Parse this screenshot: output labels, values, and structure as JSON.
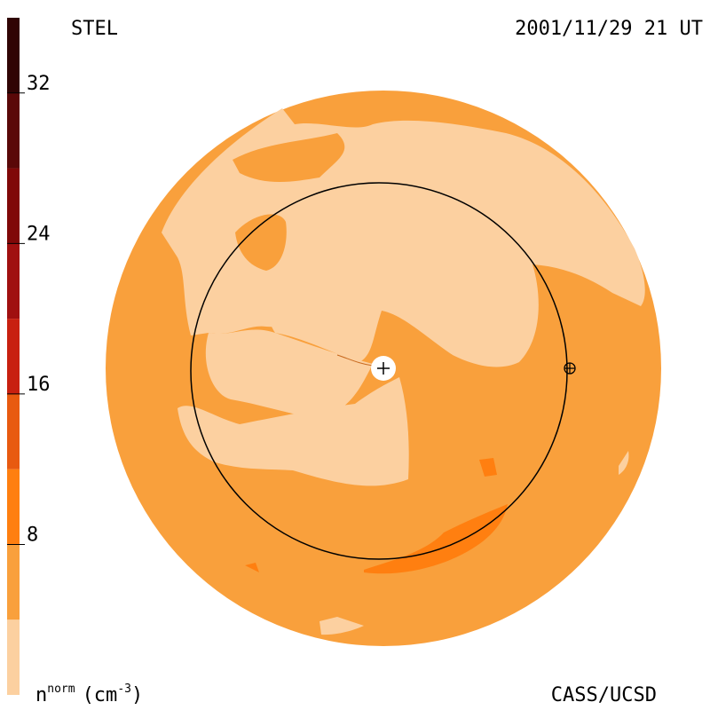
{
  "chart_data": {
    "type": "colorbar",
    "title": "STEL",
    "date": "2001/11/29 21 UT",
    "credit": "CASS/UCSD",
    "label": {
      "base": "n",
      "sup": "norm",
      "unit": "(cm",
      "unit_sup": "-3",
      "close": ")"
    },
    "levels": [
      0,
      4,
      8,
      12,
      16,
      20,
      24,
      28,
      32,
      36
    ],
    "colors": [
      "#fcd0a0",
      "#f9a03c",
      "#ff7f10",
      "#e85a10",
      "#c82010",
      "#a01010",
      "#800808",
      "#5a0808",
      "#300404"
    ],
    "ylim": [
      0,
      36
    ],
    "yticks": [
      8,
      16,
      24,
      32
    ]
  }
}
